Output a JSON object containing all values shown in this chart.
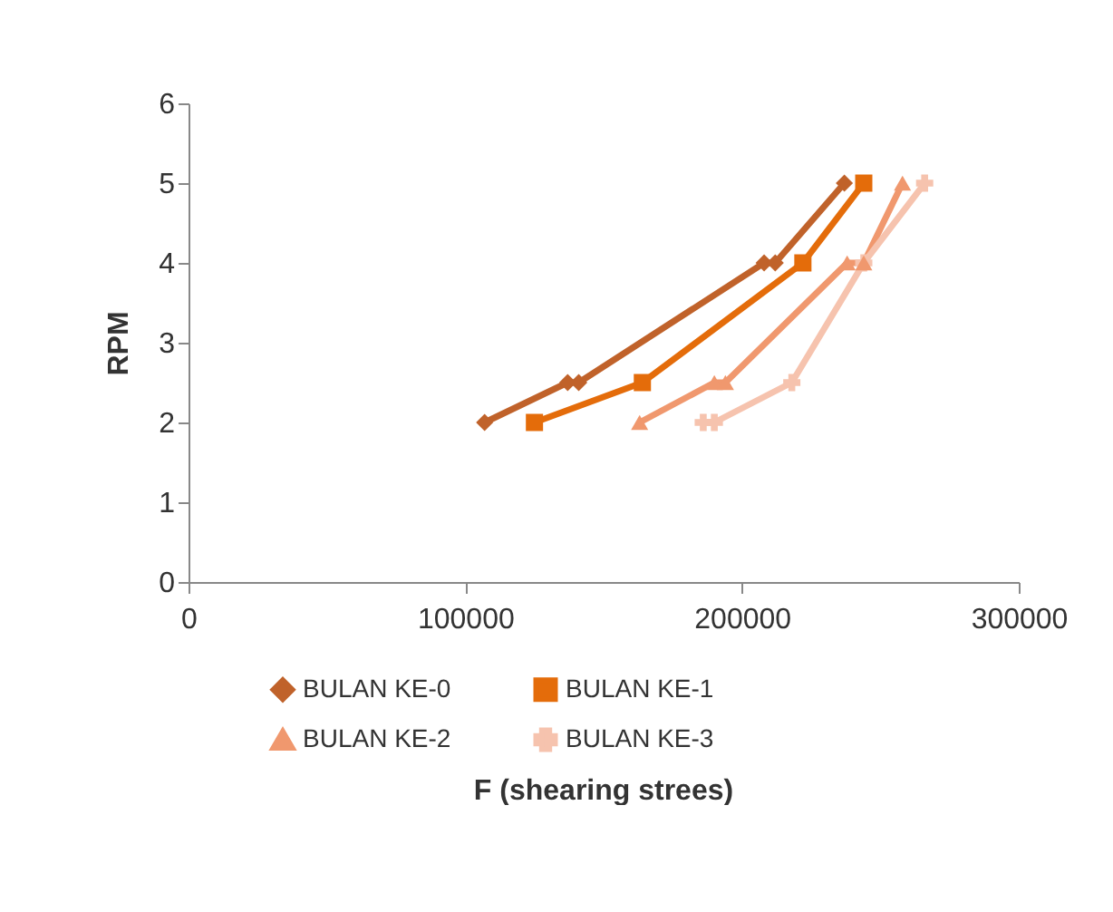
{
  "chart_data": {
    "type": "line",
    "xlabel": "F (shearing strees)",
    "ylabel": "RPM",
    "xlim": [
      0,
      300000
    ],
    "xticks": [
      0,
      100000,
      200000,
      300000
    ],
    "ylim": [
      0,
      6
    ],
    "yticks": [
      0,
      1,
      2,
      3,
      4,
      5,
      6
    ],
    "grid": false,
    "legend": "bottom",
    "line_style": "solid",
    "series": [
      {
        "name": "BULAN KE-0",
        "color": "#c0622a",
        "marker": "diamond",
        "x": [
          107000,
          137000,
          141000,
          208000,
          212000,
          237000
        ],
        "values": [
          2,
          2.5,
          2.5,
          4,
          4,
          5
        ]
      },
      {
        "name": "BULAN KE-1",
        "color": "#e46c0a",
        "marker": "square",
        "x": [
          125000,
          164000,
          222000,
          244000
        ],
        "values": [
          2,
          2.5,
          4,
          5
        ]
      },
      {
        "name": "BULAN KE-2",
        "color": "#f0986e",
        "marker": "triangle",
        "x": [
          163000,
          190000,
          194000,
          238000,
          244000,
          258000
        ],
        "values": [
          2,
          2.5,
          2.5,
          4,
          4,
          5
        ]
      },
      {
        "name": "BULAN KE-3",
        "color": "#f6c3ae",
        "marker": "cross",
        "x": [
          186000,
          190000,
          218000,
          244000,
          266000
        ],
        "values": [
          2,
          2,
          2.5,
          4,
          5
        ]
      }
    ]
  }
}
